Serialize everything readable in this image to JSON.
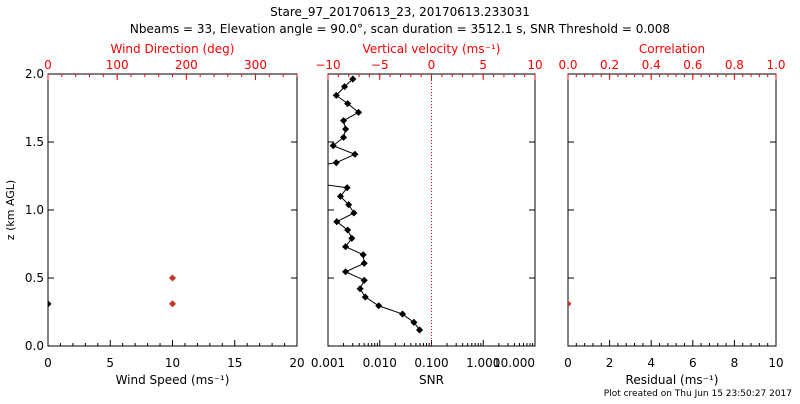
{
  "chart_data": {
    "type": "line",
    "title": "Stare_97_20170613_23, 20170613.233031",
    "subtitle": "Nbeams = 33, Elevation angle = 90.0°, scan duration = 3512.1 s, SNR Threshold = 0.008",
    "ylabel": "z (km AGL)",
    "ylim": [
      0,
      2
    ],
    "yticks": [
      "0.0",
      "0.5",
      "1.0",
      "1.5",
      "2.0"
    ],
    "footer": "Plot created on Thu Jun 15 23:50:27 2017",
    "colors": {
      "axis": "#000000",
      "secondary": "#ff0000",
      "wind_points": "#c0392b"
    },
    "panels": [
      {
        "bottom_label": "Wind Speed (ms⁻¹)",
        "bottom_lim": [
          0,
          20
        ],
        "bottom_ticks": [
          "0",
          "5",
          "10",
          "15",
          "20"
        ],
        "top_label": "Wind Direction (deg)",
        "top_lim": [
          0,
          360
        ],
        "top_ticks": [
          "0",
          "100",
          "200",
          "300"
        ],
        "series": [
          {
            "name": "wind speed",
            "color": "#c0392b",
            "points": [
              [
                10,
                0.5
              ],
              [
                10,
                0.31
              ]
            ]
          },
          {
            "name": "wind direction",
            "color": "#000000",
            "points": [
              [
                0,
                0.31
              ]
            ]
          }
        ]
      },
      {
        "bottom_label": "SNR",
        "bottom_scale": "log",
        "bottom_lim": [
          0.001,
          10
        ],
        "bottom_ticks": [
          "0.001",
          "0.010",
          "0.100",
          "1.000",
          "10.000"
        ],
        "top_label": "Vertical velocity (ms⁻¹)",
        "top_lim": [
          -10,
          10
        ],
        "top_ticks": [
          "−10",
          "−5",
          "0",
          "5",
          "10"
        ],
        "reference_line": {
          "snr": 0.1,
          "style": "dotted",
          "color": "#ff0000"
        },
        "series": [
          {
            "name": "vertical velocity",
            "color": "#000000",
            "points": [
              [
                -7.6,
                1.963
              ],
              [
                -8.4,
                1.907
              ],
              [
                -9.2,
                1.843
              ],
              [
                -8.1,
                1.782
              ],
              [
                -7.05,
                1.718
              ],
              [
                -8.5,
                1.657
              ],
              [
                -8.3,
                1.595
              ],
              [
                -8.5,
                1.534
              ],
              [
                -9.5,
                1.473
              ],
              [
                -7.4,
                1.41
              ],
              [
                -9.2,
                1.348
              ],
              [
                -14,
                1.287
              ],
              [
                -14,
                1.225
              ],
              [
                -8.15,
                1.164
              ],
              [
                -8.8,
                1.1
              ],
              [
                -8.0,
                1.039
              ],
              [
                -7.5,
                0.978
              ],
              [
                -9.15,
                0.914
              ],
              [
                -8.1,
                0.853
              ],
              [
                -7.7,
                0.792
              ],
              [
                -8.3,
                0.73
              ],
              [
                -6.6,
                0.671
              ],
              [
                -6.5,
                0.608
              ],
              [
                -8.3,
                0.546
              ],
              [
                -6.5,
                0.483
              ],
              [
                -6.9,
                0.421
              ],
              [
                -6.4,
                0.36
              ],
              [
                -5.1,
                0.296
              ],
              [
                -2.8,
                0.235
              ],
              [
                -1.7,
                0.174
              ],
              [
                -1.15,
                0.118
              ]
            ]
          }
        ]
      },
      {
        "bottom_label": "Residual (ms⁻¹)",
        "bottom_lim": [
          0,
          10
        ],
        "bottom_ticks": [
          "0",
          "2",
          "4",
          "6",
          "8",
          "10"
        ],
        "top_label": "Correlation",
        "top_lim": [
          0,
          1
        ],
        "top_ticks": [
          "0.0",
          "0.2",
          "0.4",
          "0.6",
          "0.8",
          "1.0"
        ],
        "series": [
          {
            "name": "correlation",
            "color": "#c0392b",
            "points": [
              [
                0,
                0.31
              ]
            ]
          }
        ]
      }
    ]
  }
}
